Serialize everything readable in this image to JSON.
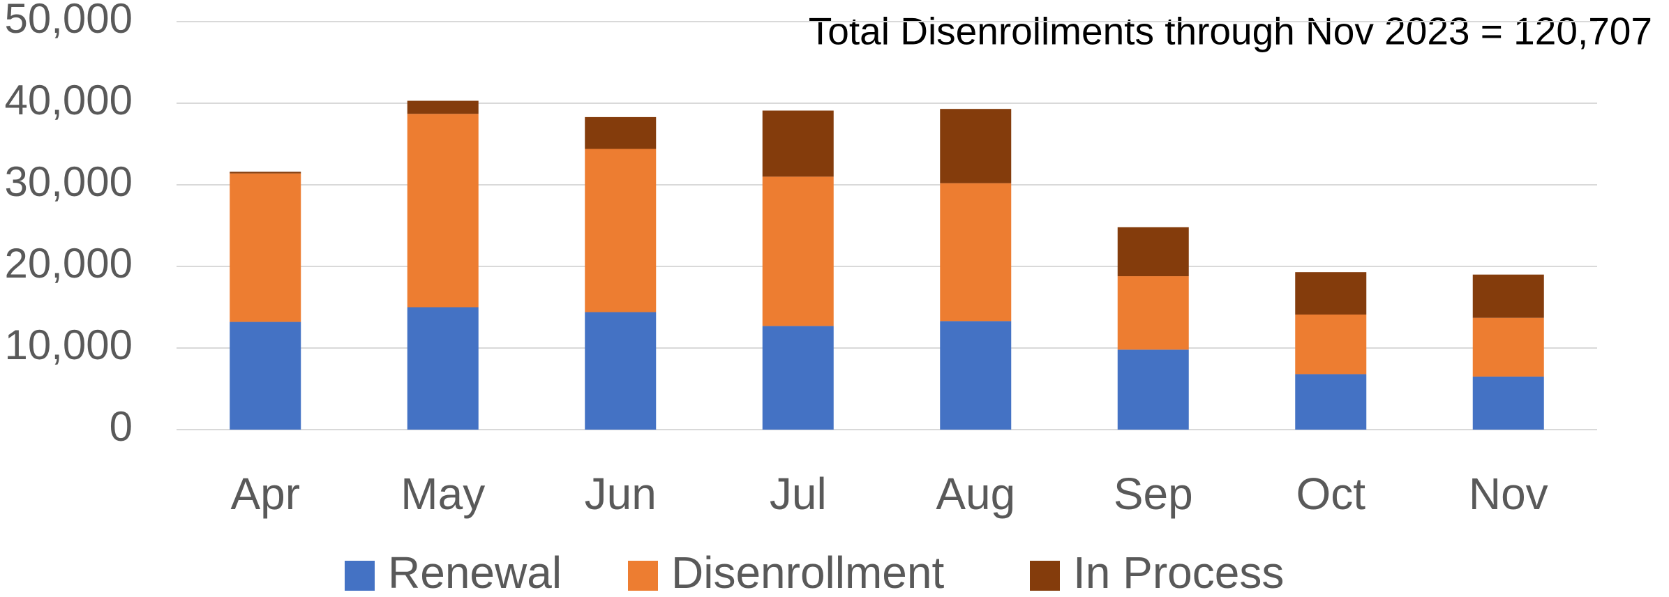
{
  "chart_data": {
    "type": "stacked_bar",
    "annotation": "Total Disenrollments through Nov 2023 = 120,707",
    "categories": [
      "Apr",
      "May",
      "Jun",
      "Jul",
      "Aug",
      "Sep",
      "Oct",
      "Nov"
    ],
    "series": [
      {
        "name": "Renewal",
        "color": "#4472c4",
        "values": [
          13200,
          15000,
          14400,
          12700,
          13300,
          9800,
          6800,
          6500
        ]
      },
      {
        "name": "Disenrollment",
        "color": "#ed7d31",
        "values": [
          18200,
          23700,
          20000,
          18300,
          16900,
          9000,
          7300,
          7200
        ]
      },
      {
        "name": "In Process",
        "color": "#843c0c",
        "values": [
          200,
          1600,
          3900,
          8100,
          9100,
          6000,
          5200,
          5300
        ]
      }
    ],
    "ylim": [
      0,
      50000
    ],
    "yticks": [
      0,
      {
        "value": 10000,
        "label": "10,000"
      },
      {
        "value": 20000,
        "label": "20,000"
      },
      {
        "value": 30000,
        "label": "30,000"
      },
      {
        "value": 40000,
        "label": "40,000"
      },
      {
        "value": 50000,
        "label": "50,000"
      }
    ],
    "grid": true,
    "legend": "bottom"
  }
}
